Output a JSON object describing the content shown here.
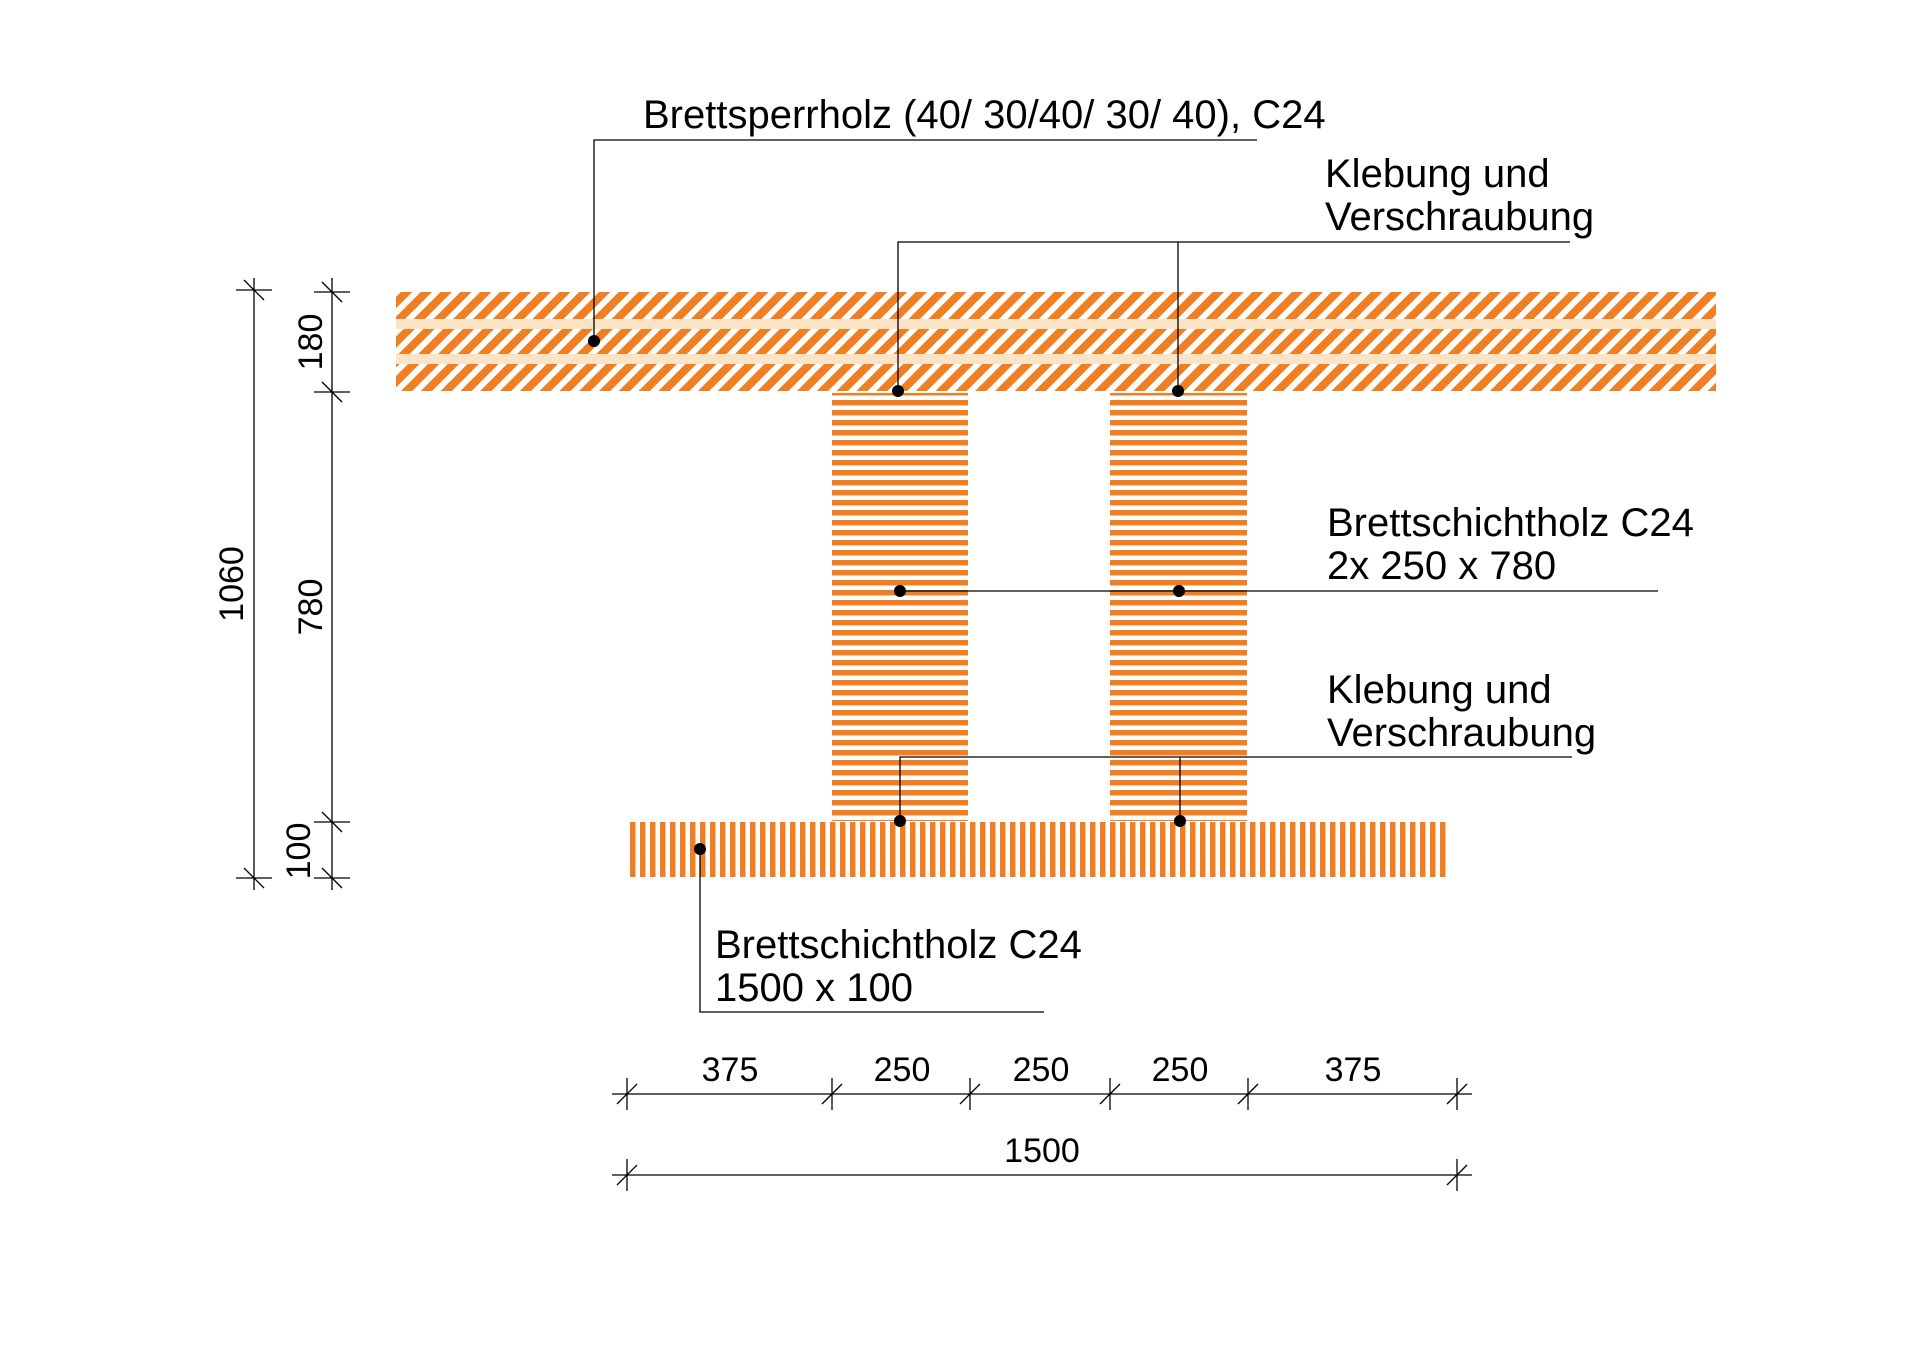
{
  "colors": {
    "wood": "#ef7f22",
    "wood_light": "#fbe3c6",
    "line": "#000000",
    "background": "#ffffff"
  },
  "labels": {
    "clt": "Brettsperrholz (40/ 30/40/ 30/ 40), C24",
    "glue_top_1": "Klebung und",
    "glue_top_2": "Verschraubung",
    "web_1": "Brettschichtholz C24",
    "web_2": "2x 250 x 780",
    "glue_bottom_1": "Klebung und",
    "glue_bottom_2": "Verschraubung",
    "flange_1": "Brettschichtholz C24",
    "flange_2": "1500 x 100"
  },
  "dimensions": {
    "total_height": "1060",
    "top_slab": "180",
    "web_height": "780",
    "bottom_flange": "100",
    "segments": [
      "375",
      "250",
      "250",
      "250",
      "375"
    ],
    "total_width": "1500"
  }
}
